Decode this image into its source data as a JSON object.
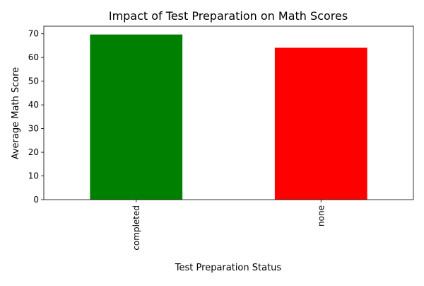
{
  "chart_data": {
    "type": "bar",
    "title": "Impact of Test Preparation on Math Scores",
    "xlabel": "Test Preparation Status",
    "ylabel": "Average Math Score",
    "categories": [
      "completed",
      "none"
    ],
    "values": [
      69.7,
      64.1
    ],
    "colors": [
      "#008000",
      "#ff0000"
    ],
    "ylim": [
      0,
      73.2
    ],
    "yticks": [
      0,
      10,
      20,
      30,
      40,
      50,
      60,
      70
    ],
    "grid": false,
    "legend": "none"
  }
}
